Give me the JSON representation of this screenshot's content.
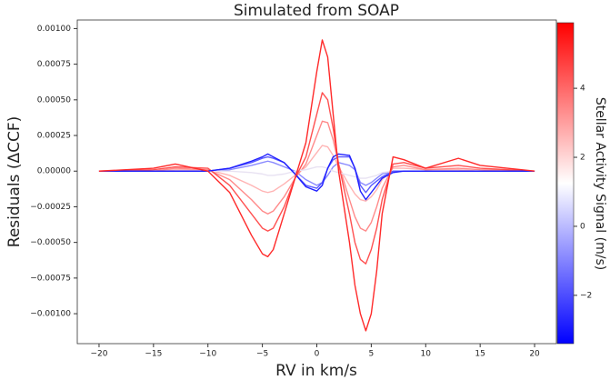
{
  "chart_data": {
    "type": "line",
    "title": "Simulated from SOAP",
    "x_label": "RV in km/s",
    "y_label": "Residuals (ΔCCF)",
    "x": [
      -20,
      -15,
      -13,
      -10,
      -8,
      -6,
      -5,
      -4.5,
      -4,
      -3,
      -2,
      -1,
      0,
      0.5,
      1,
      1.5,
      2,
      3,
      3.5,
      4,
      4.5,
      5,
      5.5,
      6,
      7,
      8,
      10,
      13,
      15,
      20
    ],
    "xlim": [
      -22,
      22
    ],
    "ylim": [
      -0.00121,
      0.00106
    ],
    "xticks": [
      {
        "value": -20,
        "label": "−20"
      },
      {
        "value": -15,
        "label": "−15"
      },
      {
        "value": -10,
        "label": "−10"
      },
      {
        "value": -5,
        "label": "−5"
      },
      0,
      5,
      10,
      15,
      20
    ],
    "yticks": [
      {
        "value": -0.001,
        "label": "−0.00100"
      },
      {
        "value": -0.00075,
        "label": "−0.00075"
      },
      {
        "value": -0.0005,
        "label": "−0.00050"
      },
      {
        "value": -0.00025,
        "label": "−0.00025"
      },
      {
        "value": 0,
        "label": "0.00000"
      },
      {
        "value": 0.00025,
        "label": "0.00025"
      },
      {
        "value": 0.0005,
        "label": "0.00050"
      },
      {
        "value": 0.00075,
        "label": "0.00075"
      },
      {
        "value": 0.001,
        "label": "0.00100"
      }
    ],
    "series": [
      {
        "color": "#8a8aff",
        "values": [
          0,
          0,
          0,
          0,
          1e-05,
          4e-05,
          6e-05,
          7e-05,
          6e-05,
          3e-05,
          0,
          -6e-05,
          -0.0001,
          -8e-05,
          -3e-05,
          3e-05,
          6e-05,
          4e-05,
          1e-05,
          -8e-05,
          -0.0001,
          -8e-05,
          -5e-05,
          -2e-05,
          0,
          0,
          0,
          0,
          0,
          0
        ]
      },
      {
        "color": "#ffb4b4",
        "values": [
          0,
          0,
          1e-05,
          1e-05,
          -3e-05,
          -0.0001,
          -0.00014,
          -0.00015,
          -0.00014,
          -9e-05,
          -3e-05,
          3e-05,
          0.00013,
          0.00018,
          0.00017,
          0.00011,
          3e-05,
          -0.0001,
          -0.00016,
          -0.0002,
          -0.00021,
          -0.00018,
          -0.00013,
          -6e-05,
          2e-05,
          2e-05,
          1e-05,
          1e-05,
          0,
          0
        ]
      },
      {
        "color": "#ff8a8a",
        "values": [
          0,
          0,
          2e-05,
          1e-05,
          -6e-05,
          -0.0002,
          -0.00028,
          -0.0003,
          -0.00028,
          -0.00018,
          -5e-05,
          5e-05,
          0.00025,
          0.00035,
          0.00034,
          0.00022,
          5e-05,
          -0.0002,
          -0.00032,
          -0.0004,
          -0.00042,
          -0.00036,
          -0.00025,
          -0.00012,
          3e-05,
          4e-05,
          1e-05,
          2e-05,
          1e-05,
          0
        ]
      },
      {
        "color": "#e8e2f2",
        "values": [
          0,
          0,
          0,
          0,
          0,
          -1e-05,
          -2e-05,
          -3e-05,
          -3e-05,
          -2e-05,
          0,
          1e-05,
          3e-05,
          3e-05,
          2e-05,
          0,
          -1e-05,
          -3e-05,
          -4e-05,
          -5e-05,
          -5e-05,
          -4e-05,
          -3e-05,
          -1e-05,
          0,
          0,
          0,
          0,
          0,
          0
        ]
      },
      {
        "color": "#5a5aff",
        "values": [
          0,
          0,
          0,
          0,
          2e-05,
          6e-05,
          9e-05,
          0.0001,
          9e-05,
          6e-05,
          -2e-05,
          -0.0001,
          -0.00012,
          -8e-05,
          2e-05,
          8e-05,
          0.0001,
          0.0001,
          2e-05,
          -0.0001,
          -0.00015,
          -0.0001,
          -7e-05,
          -4e-05,
          0,
          0,
          0,
          0,
          0,
          0
        ]
      },
      {
        "color": "#ff5050",
        "values": [
          0,
          1e-05,
          3e-05,
          2e-05,
          -0.0001,
          -0.0003,
          -0.0004,
          -0.00042,
          -0.0004,
          -0.00025,
          -5e-05,
          0.0001,
          0.0004,
          0.00055,
          0.0005,
          0.0003,
          5e-05,
          -0.0003,
          -0.0005,
          -0.00062,
          -0.00065,
          -0.00055,
          -0.0004,
          -0.0002,
          5e-05,
          6e-05,
          2e-05,
          4e-05,
          2e-05,
          0
        ]
      },
      {
        "color": "#2020ff",
        "values": [
          0,
          0,
          0,
          0,
          2e-05,
          7e-05,
          0.0001,
          0.00012,
          0.0001,
          6e-05,
          -2e-05,
          -0.00011,
          -0.00014,
          -0.0001,
          2e-05,
          0.0001,
          0.00012,
          0.00011,
          2e-05,
          -0.00014,
          -0.0002,
          -0.00015,
          -0.0001,
          -5e-05,
          -1e-05,
          0,
          0,
          0,
          0,
          0
        ]
      },
      {
        "color": "#ff2a2a",
        "values": [
          0,
          2e-05,
          5e-05,
          0,
          -0.00015,
          -0.00045,
          -0.00058,
          -0.0006,
          -0.00055,
          -0.0003,
          -5e-05,
          0.0002,
          0.0007,
          0.00092,
          0.0008,
          0.0004,
          0,
          -0.0005,
          -0.0008,
          -0.001,
          -0.00112,
          -0.001,
          -0.0007,
          -0.0003,
          0.0001,
          8e-05,
          2e-05,
          9e-05,
          4e-05,
          0
        ]
      }
    ],
    "colorbar": {
      "label": "Stellar Activity Signal (m/s)",
      "lim": [
        -3.4,
        5.9
      ],
      "ticks": [
        {
          "value": -2,
          "label": "−2"
        },
        0,
        2,
        4
      ],
      "colormap": [
        "#0000ff",
        "#ffffff",
        "#ff0000"
      ]
    }
  }
}
